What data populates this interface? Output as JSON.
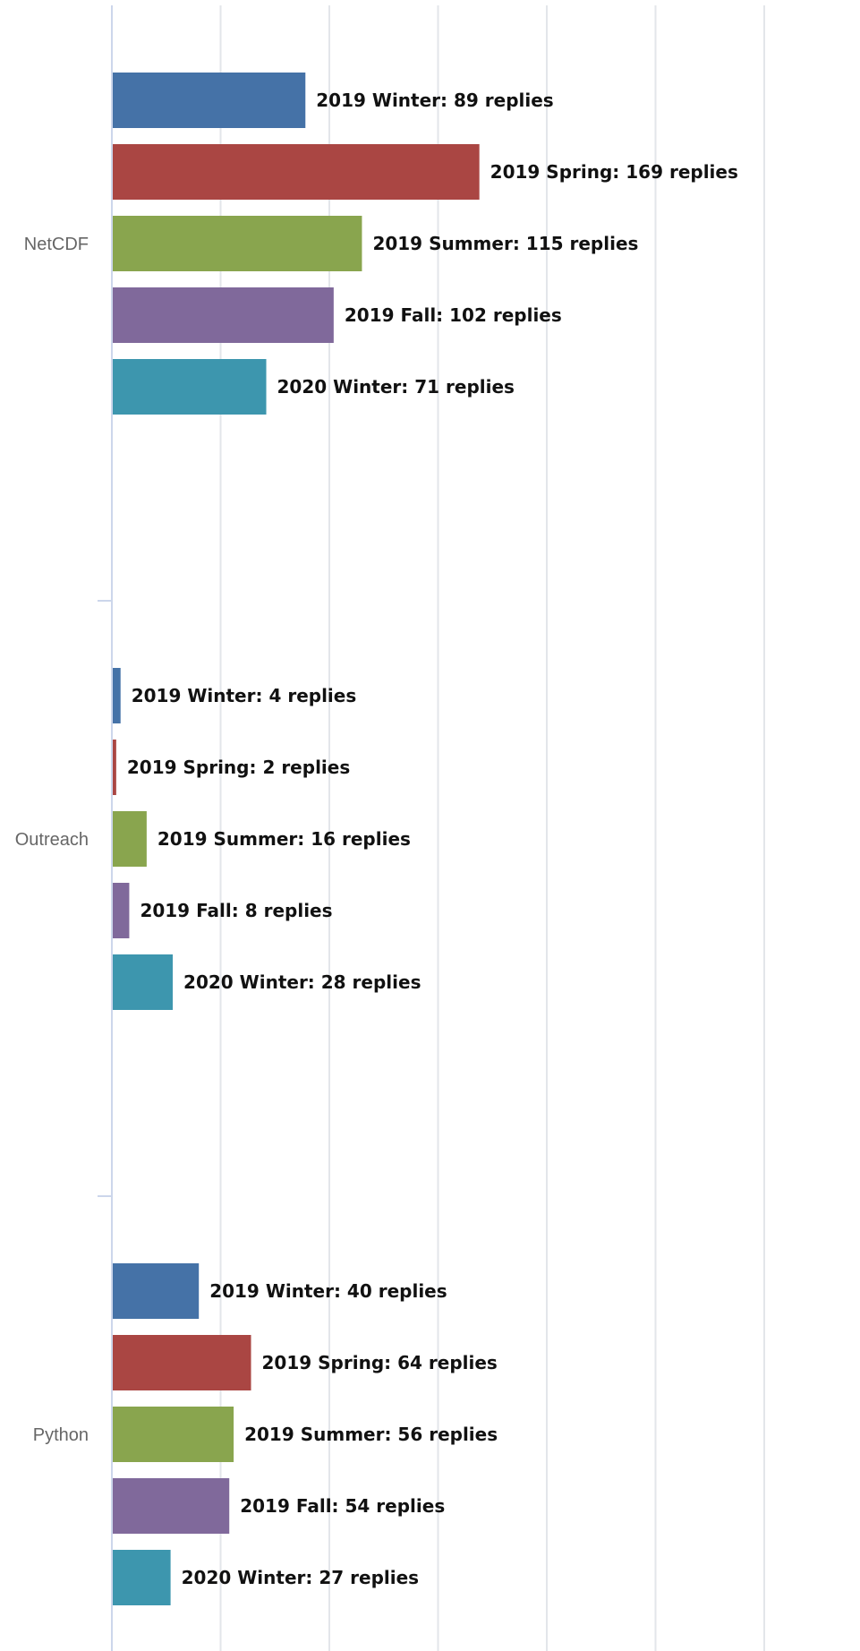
{
  "chart_data": {
    "type": "bar",
    "orientation": "horizontal",
    "title": "",
    "xlabel": "",
    "ylabel": "",
    "grid": true,
    "xlim": [
      0,
      350
    ],
    "legend": "none",
    "categories": [
      "NetCDF",
      "Outreach",
      "Python"
    ],
    "series": [
      {
        "name": "2019 Winter",
        "color": "#4572a7",
        "values": [
          89,
          4,
          40
        ]
      },
      {
        "name": "2019 Spring",
        "color": "#aa4643",
        "values": [
          169,
          2,
          64
        ]
      },
      {
        "name": "2019 Summer",
        "color": "#89a54e",
        "values": [
          115,
          16,
          56
        ]
      },
      {
        "name": "2019 Fall",
        "color": "#80699b",
        "values": [
          102,
          8,
          54
        ]
      },
      {
        "name": "2020 Winter",
        "color": "#3d96ae",
        "values": [
          71,
          28,
          27
        ]
      }
    ],
    "data_label_suffix": " replies"
  }
}
